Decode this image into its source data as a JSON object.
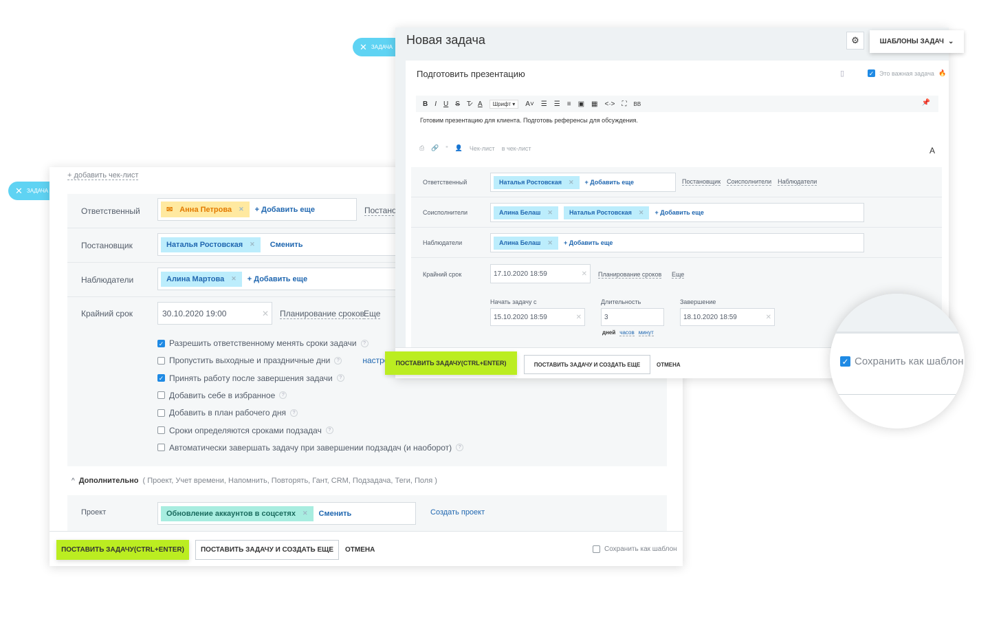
{
  "tabs": {
    "back": "ЗАДАЧА",
    "front": "ЗАДАЧА"
  },
  "colors": {
    "accent": "#bbed21",
    "chip": "#bcedfc",
    "chip_warn": "#ffe9a0",
    "chip_project": "#a8ede0",
    "tab": "#5fd3f3",
    "link": "#2067b0"
  },
  "back": {
    "add_checklist": "+ добавить чек-лист",
    "fields": [
      {
        "label": "Ответственный",
        "chip": "Анна Петрова",
        "action": "+ Добавить еще",
        "extra": "Постанов"
      },
      {
        "label": "Постановщик",
        "chip": "Наталья Ростовская",
        "action": "Сменить"
      },
      {
        "label": "Наблюдатели",
        "chip": "Алина Мартова",
        "action": "+ Добавить еще"
      }
    ],
    "deadline": {
      "label": "Крайний срок",
      "value": "30.10.2020 19:00",
      "planning": "Планирование сроков",
      "more": "Еще"
    },
    "options": [
      {
        "label": "Разрешить ответственному менять сроки задачи",
        "checked": true
      },
      {
        "label": "Пропустить выходные и праздничные дни",
        "checked": false,
        "link": "настроить"
      },
      {
        "label": "Принять работу после завершения задачи",
        "checked": true
      },
      {
        "label": "Добавить себе в избранное",
        "checked": false
      },
      {
        "label": "Добавить в план рабочего дня",
        "checked": false
      },
      {
        "label": "Сроки определяются сроками подзадач",
        "checked": false
      },
      {
        "label": "Автоматически завершать задачу при завершении подзадач (и наоборот)",
        "checked": false
      }
    ],
    "additional": {
      "title": "Дополнительно",
      "list": "( Проект,  Учет времени,  Напомнить,  Повторять,  Гант,  CRM,  Подзадача,  Теги,  Поля )"
    },
    "project": {
      "label": "Проект",
      "chip": "Обновление аккаунтов в соцсетях",
      "action": "Сменить",
      "create": "Создать проект"
    },
    "footer": {
      "submit": "ПОСТАВИТЬ ЗАДАЧУ(CTRL+ENTER)",
      "submit_more": "ПОСТАВИТЬ ЗАДАЧУ И СОЗДАТЬ ЕЩЕ",
      "cancel": "ОТМЕНА",
      "save_template": "Сохранить как шаблон",
      "save_template_checked": false
    }
  },
  "front": {
    "title": "Новая задача",
    "templates": "ШАБЛОНЫ ЗАДАЧ",
    "task_name": "Подготовить презентацию",
    "important": "Это важная задача",
    "toolbar": {
      "font": "Шрифт"
    },
    "description": "Готовим презентацию для клиента. Подготовь референсы для обсуждения.",
    "bottom_tools": {
      "checklist": "Чек-лист",
      "to_checklist": "в чек-лист"
    },
    "fields": [
      {
        "label": "Ответственный",
        "chips": [
          "Наталья Ростовская"
        ],
        "action": "+ Добавить еще"
      },
      {
        "label": "Соисполнители",
        "chips": [
          "Алина Белаш",
          "Наталья Ростовская"
        ],
        "action": "+ Добавить еще"
      },
      {
        "label": "Наблюдатели",
        "chips": [
          "Алина Белаш"
        ],
        "action": "+ Добавить еще"
      }
    ],
    "role_links": [
      "Постановщик",
      "Соисполнители",
      "Наблюдатели"
    ],
    "deadline": {
      "label": "Крайний срок",
      "value": "17.10.2020 18:59",
      "planning": "Планирование сроков",
      "more": "Еще"
    },
    "start": {
      "label": "Начать задачу с",
      "value": "15.10.2020 18:59"
    },
    "duration": {
      "label": "Длительность",
      "value": "3",
      "units": [
        "дней",
        "часов",
        "минут"
      ]
    },
    "end": {
      "label": "Завершение",
      "value": "18.10.2020 18:59"
    },
    "footer": {
      "submit": "ПОСТАВИТЬ ЗАДАЧУ(CTRL+ENTER)",
      "submit_more": "ПОСТАВИТЬ ЗАДАЧУ И СОЗДАТЬ ЕЩЕ",
      "cancel": "ОТМЕНА"
    }
  },
  "magnifier": {
    "label": "Сохранить как шаблон",
    "checked": true
  }
}
